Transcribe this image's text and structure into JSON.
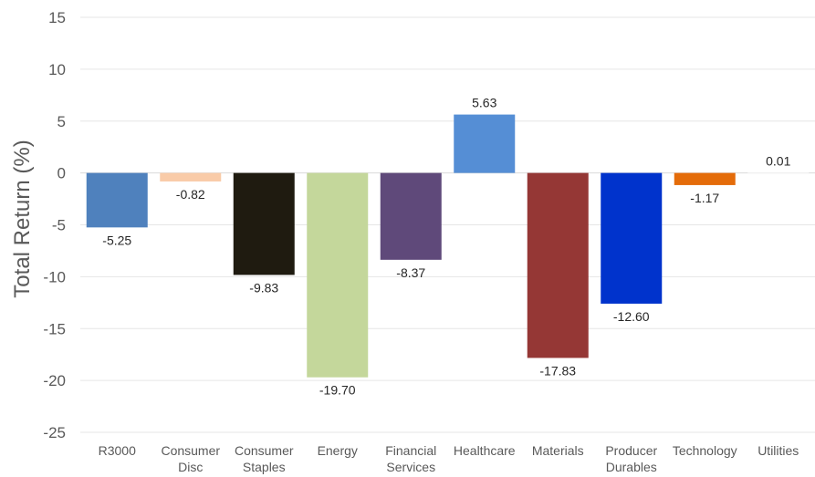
{
  "chart_data": {
    "type": "bar",
    "title": "",
    "xlabel": "",
    "ylabel": "Total Return (%)",
    "ylim": [
      -25,
      15
    ],
    "yticks": [
      15,
      10,
      5,
      0,
      -5,
      -10,
      -15,
      -20,
      -25
    ],
    "ytick_labels": [
      "15",
      "10",
      "5",
      "0",
      "-5",
      "-10",
      "-15",
      "-20",
      "-25"
    ],
    "grid": true,
    "legend": "none",
    "categories": [
      [
        "R3000"
      ],
      [
        "Consumer",
        "Disc"
      ],
      [
        "Consumer",
        "Staples"
      ],
      [
        "Energy"
      ],
      [
        "Financial",
        "Services"
      ],
      [
        "Healthcare"
      ],
      [
        "Materials"
      ],
      [
        "Producer",
        "Durables"
      ],
      [
        "Technology"
      ],
      [
        "Utilities"
      ]
    ],
    "values": [
      -5.25,
      -0.82,
      -9.83,
      -19.7,
      -8.37,
      5.63,
      -17.83,
      -12.6,
      -1.17,
      0.01
    ],
    "data_labels": [
      "-5.25",
      "-0.82",
      "-9.83",
      "-19.70",
      "-8.37",
      "5.63",
      "-17.83",
      "-12.60",
      "-1.17",
      "0.01"
    ],
    "colors": [
      "#4f81bd",
      "#f9cba8",
      "#1f1b10",
      "#c4d79b",
      "#5f497a",
      "#558ed5",
      "#953735",
      "#0033cc",
      "#e46c0a",
      "#ffffff"
    ]
  }
}
